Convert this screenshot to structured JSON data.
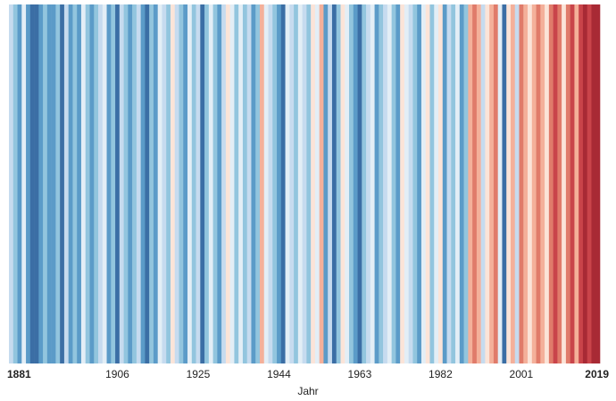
{
  "chart_data": {
    "type": "stripes",
    "x_label": "Jahr",
    "x": [
      1881,
      1882,
      1883,
      1884,
      1885,
      1886,
      1887,
      1888,
      1889,
      1890,
      1891,
      1892,
      1893,
      1894,
      1895,
      1896,
      1897,
      1898,
      1899,
      1900,
      1901,
      1902,
      1903,
      1904,
      1905,
      1906,
      1907,
      1908,
      1909,
      1910,
      1911,
      1912,
      1913,
      1914,
      1915,
      1916,
      1917,
      1918,
      1919,
      1920,
      1921,
      1922,
      1923,
      1924,
      1925,
      1926,
      1927,
      1928,
      1929,
      1930,
      1931,
      1932,
      1933,
      1934,
      1935,
      1936,
      1937,
      1938,
      1939,
      1940,
      1941,
      1942,
      1943,
      1944,
      1945,
      1946,
      1947,
      1948,
      1949,
      1950,
      1951,
      1952,
      1953,
      1954,
      1955,
      1956,
      1957,
      1958,
      1959,
      1960,
      1961,
      1962,
      1963,
      1964,
      1965,
      1966,
      1967,
      1968,
      1969,
      1970,
      1971,
      1972,
      1973,
      1974,
      1975,
      1976,
      1977,
      1978,
      1979,
      1980,
      1981,
      1982,
      1983,
      1984,
      1985,
      1986,
      1987,
      1988,
      1989,
      1990,
      1991,
      1992,
      1993,
      1994,
      1995,
      1996,
      1997,
      1998,
      1999,
      2000,
      2001,
      2002,
      2003,
      2004,
      2005,
      2006,
      2007,
      2008,
      2009,
      2010,
      2011,
      2012,
      2013,
      2014,
      2015,
      2016,
      2017,
      2018,
      2019
    ],
    "colors": [
      "#c6dbef",
      "#92c5de",
      "#5b9bc8",
      "#e3eef6",
      "#5b9bc8",
      "#3b6ea5",
      "#3b6ea5",
      "#5b9bc8",
      "#92c5de",
      "#5b9bc8",
      "#5b9bc8",
      "#92c5de",
      "#3b6ea5",
      "#c6dbef",
      "#5b9bc8",
      "#92c5de",
      "#5b9bc8",
      "#e3eef6",
      "#92c5de",
      "#5b9bc8",
      "#92c5de",
      "#c6dbef",
      "#e3eef6",
      "#5b9bc8",
      "#92c5de",
      "#3b6ea5",
      "#c6dbef",
      "#92c5de",
      "#5b9bc8",
      "#92c5de",
      "#c6dbef",
      "#5b9bc8",
      "#3b6ea5",
      "#92c5de",
      "#5b9bc8",
      "#e3eef6",
      "#c6dbef",
      "#92c5de",
      "#fbe4d8",
      "#c6dbef",
      "#92c5de",
      "#5b9bc8",
      "#e3eef6",
      "#92c5de",
      "#c6dbef",
      "#3b6ea5",
      "#92c5de",
      "#e3eef6",
      "#92c5de",
      "#5b9bc8",
      "#c6dbef",
      "#fbe4d8",
      "#e3eef6",
      "#92c5de",
      "#e3eef6",
      "#92c5de",
      "#c6dbef",
      "#5b9bc8",
      "#92c5de",
      "#f4b09a",
      "#e3eef6",
      "#c6dbef",
      "#92c5de",
      "#5b9bc8",
      "#3b6ea5",
      "#e3eef6",
      "#c6dbef",
      "#92c5de",
      "#e3eef6",
      "#c6dbef",
      "#92c5de",
      "#fbe4d8",
      "#e3eef6",
      "#f4b09a",
      "#5b9bc8",
      "#c6dbef",
      "#3b6ea5",
      "#92c5de",
      "#fbe4d8",
      "#e3eef6",
      "#92c5de",
      "#5b9bc8",
      "#3b6ea5",
      "#92c5de",
      "#c6dbef",
      "#e3eef6",
      "#5b9bc8",
      "#92c5de",
      "#c6dbef",
      "#e3eef6",
      "#92c5de",
      "#5b9bc8",
      "#fbe4d8",
      "#e3eef6",
      "#c6dbef",
      "#92c5de",
      "#5b9bc8",
      "#e3eef6",
      "#fbe4d8",
      "#92c5de",
      "#e3eef6",
      "#fbe4d8",
      "#5b9bc8",
      "#c6dbef",
      "#92c5de",
      "#e3eef6",
      "#5b9bc8",
      "#92c5de",
      "#f4b09a",
      "#e07b6a",
      "#f4b09a",
      "#c6dbef",
      "#fbe4d8",
      "#f4b09a",
      "#e07b6a",
      "#e3eef6",
      "#3b6ea5",
      "#fbe4d8",
      "#f4b09a",
      "#c6dbef",
      "#e07b6a",
      "#f4b09a",
      "#fbe4d8",
      "#f4b09a",
      "#e07b6a",
      "#f4b09a",
      "#fbe4d8",
      "#e07b6a",
      "#c9444a",
      "#e07b6a",
      "#fbe4d8",
      "#e07b6a",
      "#c9444a",
      "#f4b09a",
      "#c9444a",
      "#a82a35",
      "#c9444a",
      "#a82a35",
      "#a82a35"
    ],
    "xlim": [
      1880.5,
      2019.5
    ],
    "xticks": [
      1881,
      1906,
      1925,
      1944,
      1963,
      1982,
      2001,
      2019
    ]
  }
}
